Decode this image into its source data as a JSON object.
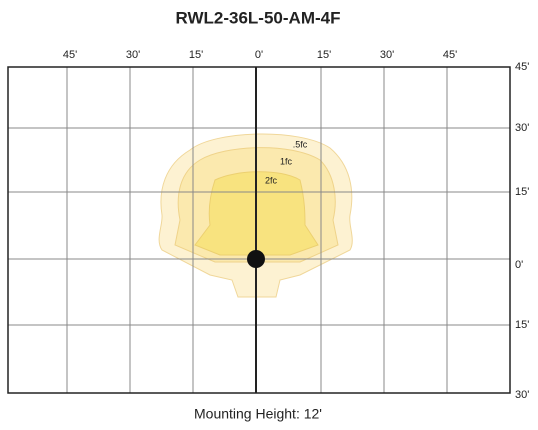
{
  "title": "RWL2-36L-50-AM-4F",
  "x_labels": [
    "45'",
    "30'",
    "15'",
    "0'",
    "15'",
    "30'",
    "45'"
  ],
  "y_labels": [
    "45'",
    "30'",
    "15'",
    "0'",
    "15'",
    "30'"
  ],
  "contours": [
    {
      "label": ".5fc"
    },
    {
      "label": "1fc"
    },
    {
      "label": "2fc"
    }
  ],
  "footer": "Mounting Height: 12'"
}
